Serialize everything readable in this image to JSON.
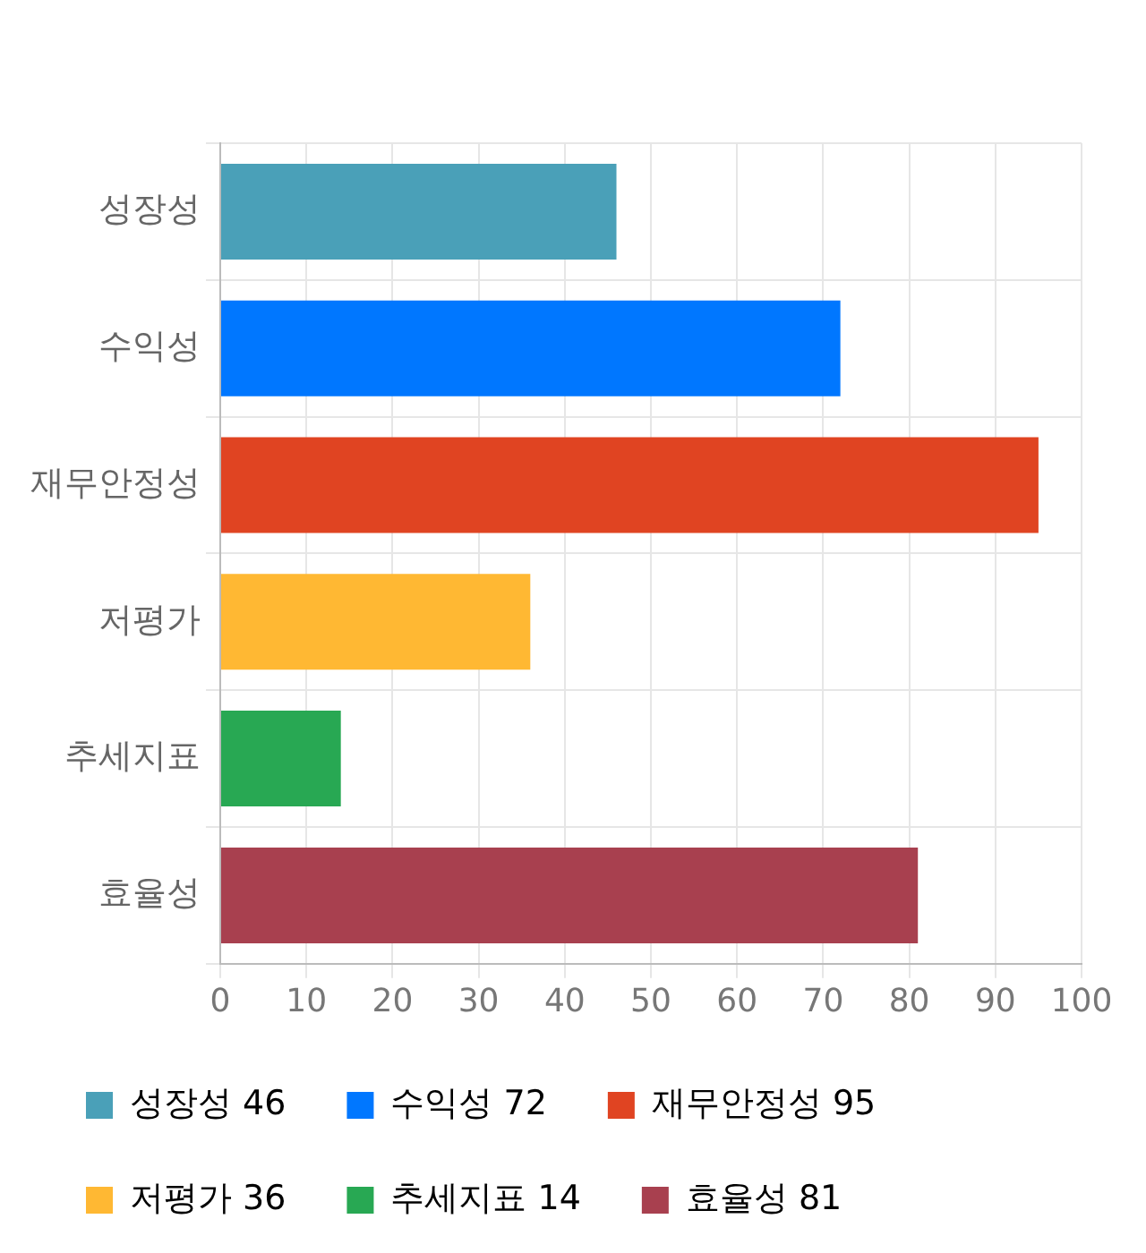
{
  "chart_data": {
    "type": "bar",
    "orientation": "horizontal",
    "stacked": true,
    "categories": [
      "성장성",
      "수익성",
      "재무안정성",
      "저평가",
      "추세지표",
      "효율성"
    ],
    "series": [
      {
        "name": "성장성 46",
        "color": "#4aa0b8",
        "values": [
          46,
          null,
          null,
          null,
          null,
          null
        ]
      },
      {
        "name": "수익성 72",
        "color": "#0077ff",
        "values": [
          null,
          72,
          null,
          null,
          null,
          null
        ]
      },
      {
        "name": "재무안정성 95",
        "color": "#e04422",
        "values": [
          null,
          null,
          95,
          null,
          null,
          null
        ]
      },
      {
        "name": "저평가 36",
        "color": "#ffb833",
        "values": [
          null,
          null,
          null,
          36,
          null,
          null
        ]
      },
      {
        "name": "추세지표 14",
        "color": "#28a853",
        "values": [
          null,
          null,
          null,
          null,
          14,
          null
        ]
      },
      {
        "name": "효율성 81",
        "color": "#a8404f",
        "values": [
          null,
          null,
          null,
          null,
          null,
          81
        ]
      }
    ],
    "xlim": [
      0,
      100
    ],
    "xticks": [
      0,
      10,
      20,
      30,
      40,
      50,
      60,
      70,
      80,
      90,
      100
    ],
    "grid": true,
    "legend": "bottom"
  }
}
